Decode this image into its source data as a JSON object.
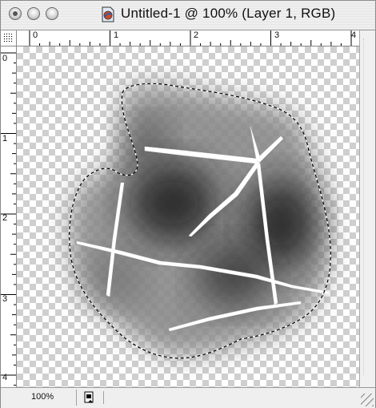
{
  "window": {
    "title": "Untitled-1 @ 100% (Layer 1, RGB)",
    "title_icon": "photoshop-document-icon"
  },
  "rulers": {
    "horizontal_labels": [
      "0",
      "1",
      "2",
      "3",
      "4"
    ],
    "vertical_labels": [
      "0",
      "1",
      "2",
      "3",
      "4"
    ]
  },
  "status": {
    "zoom": "100%",
    "info_icon": "document-info-icon"
  },
  "canvas": {
    "content": "cracked-gray-blob-with-marching-ants-selection",
    "transparency_checker_colors": [
      "#ffffff",
      "#cfcfcf"
    ]
  }
}
